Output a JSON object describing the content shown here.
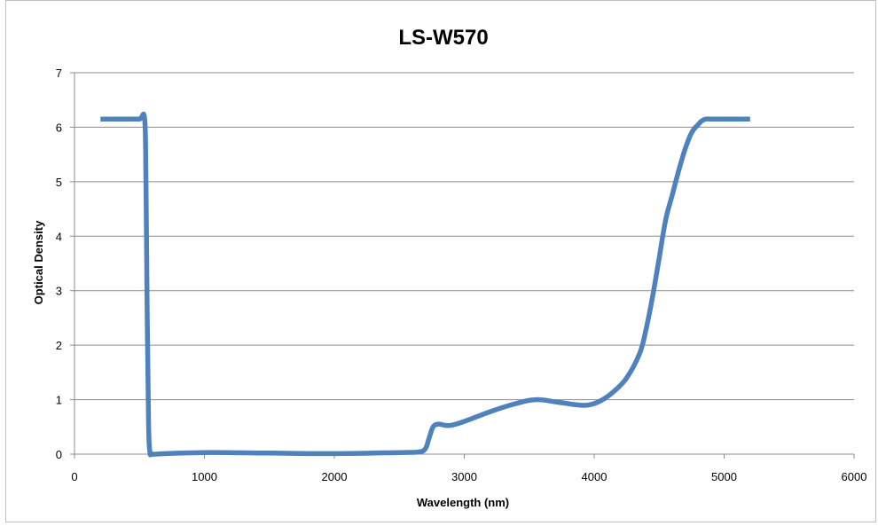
{
  "chart_data": {
    "type": "line",
    "title": "LS-W570",
    "xlabel": "Wavelength (nm)",
    "ylabel": "Optical Density",
    "xlim": [
      0,
      6000
    ],
    "ylim": [
      0,
      7
    ],
    "xticks": [
      "0",
      "1000",
      "2000",
      "3000",
      "4000",
      "5000",
      "6000"
    ],
    "yticks": [
      "0",
      "1",
      "2",
      "3",
      "4",
      "5",
      "6",
      "7"
    ],
    "grid": true,
    "legend": "none",
    "series_color": "#4f81bd",
    "series": [
      {
        "x": [
          200,
          300,
          400,
          500,
          540,
          550,
          560,
          570,
          580,
          600,
          700,
          1000,
          1500,
          2000,
          2500,
          2650,
          2700,
          2730,
          2760,
          2800,
          2850,
          2900,
          3000,
          3200,
          3400,
          3550,
          3700,
          3850,
          3950,
          4050,
          4150,
          4250,
          4350,
          4400,
          4450,
          4500,
          4550,
          4600,
          4650,
          4700,
          4750,
          4800,
          4830,
          4860,
          4900,
          5000,
          5100,
          5200
        ],
        "y": [
          6.15,
          6.15,
          6.15,
          6.15,
          6.15,
          5.0,
          2.5,
          0.6,
          0.05,
          0.0,
          0.01,
          0.03,
          0.02,
          0.01,
          0.03,
          0.04,
          0.1,
          0.3,
          0.5,
          0.55,
          0.53,
          0.53,
          0.6,
          0.78,
          0.93,
          1.0,
          0.96,
          0.91,
          0.9,
          0.98,
          1.15,
          1.4,
          1.85,
          2.3,
          2.9,
          3.6,
          4.3,
          4.75,
          5.2,
          5.6,
          5.9,
          6.05,
          6.12,
          6.15,
          6.15,
          6.15,
          6.15,
          6.15
        ]
      }
    ]
  }
}
